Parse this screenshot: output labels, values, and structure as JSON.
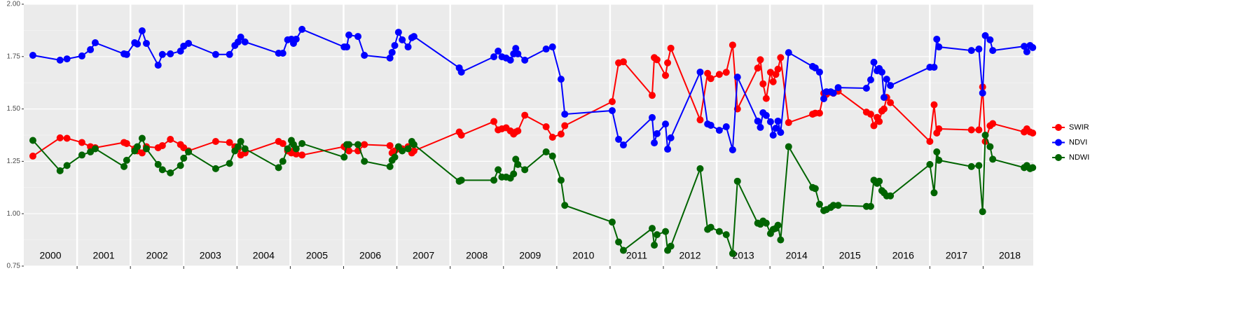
{
  "chart_data": {
    "type": "line",
    "x": [
      2000.17,
      2000.68,
      2000.81,
      2001.09,
      2001.25,
      2001.34,
      2001.88,
      2001.93,
      2002.08,
      2002.13,
      2002.22,
      2002.3,
      2002.52,
      2002.6,
      2002.75,
      2002.94,
      2003.0,
      2003.09,
      2003.6,
      2003.86,
      2003.96,
      2004.02,
      2004.07,
      2004.15,
      2004.78,
      2004.86,
      2004.95,
      2005.02,
      2005.06,
      2005.11,
      2005.22,
      2006.01,
      2006.06,
      2006.1,
      2006.27,
      2006.39,
      2006.87,
      2006.91,
      2006.96,
      2007.03,
      2007.1,
      2007.21,
      2007.28,
      2007.32,
      2008.17,
      2008.21,
      2008.82,
      2008.9,
      2008.97,
      2009.05,
      2009.13,
      2009.19,
      2009.23,
      2009.27,
      2009.4,
      2009.8,
      2009.92,
      2010.08,
      2010.15,
      2011.04,
      2011.16,
      2011.25,
      2011.79,
      2011.83,
      2011.88,
      2012.04,
      2012.08,
      2012.14,
      2012.69,
      2012.83,
      2012.89,
      2013.05,
      2013.18,
      2013.3,
      2013.39,
      2013.77,
      2013.82,
      2013.87,
      2013.93,
      2014.01,
      2014.06,
      2014.11,
      2014.15,
      2014.2,
      2014.35,
      2014.8,
      2014.85,
      2014.93,
      2015.01,
      2015.06,
      2015.14,
      2015.19,
      2015.28,
      2015.81,
      2015.89,
      2015.95,
      2016.01,
      2016.05,
      2016.1,
      2016.14,
      2016.19,
      2016.26,
      2017.0,
      2017.08,
      2017.13,
      2017.17,
      2017.78,
      2017.92,
      2017.99,
      2018.04,
      2018.13,
      2018.18,
      2018.77,
      2018.82,
      2018.88,
      2018.93
    ],
    "series": [
      {
        "name": "SWIR",
        "color": "#ff0000",
        "values": [
          1.275,
          1.362,
          1.36,
          1.34,
          1.32,
          1.315,
          1.34,
          1.335,
          1.31,
          1.3,
          1.29,
          1.32,
          1.315,
          1.325,
          1.355,
          1.33,
          1.315,
          1.3,
          1.345,
          1.34,
          1.32,
          1.31,
          1.28,
          1.29,
          1.345,
          1.335,
          1.3,
          1.29,
          1.3,
          1.285,
          1.28,
          1.32,
          1.31,
          1.3,
          1.3,
          1.33,
          1.325,
          1.29,
          1.3,
          1.31,
          1.31,
          1.32,
          1.29,
          1.3,
          1.39,
          1.375,
          1.44,
          1.4,
          1.405,
          1.41,
          1.395,
          1.38,
          1.39,
          1.395,
          1.47,
          1.415,
          1.365,
          1.38,
          1.42,
          1.535,
          1.72,
          1.725,
          1.565,
          1.745,
          1.735,
          1.66,
          1.72,
          1.79,
          1.448,
          1.67,
          1.645,
          1.665,
          1.675,
          1.805,
          1.5,
          1.695,
          1.735,
          1.62,
          1.55,
          1.675,
          1.63,
          1.665,
          1.69,
          1.745,
          1.435,
          1.475,
          1.48,
          1.48,
          1.575,
          1.57,
          1.58,
          1.575,
          1.585,
          1.485,
          1.475,
          1.42,
          1.46,
          1.44,
          1.49,
          1.5,
          1.555,
          1.53,
          1.345,
          1.52,
          1.385,
          1.405,
          1.4,
          1.4,
          1.605,
          1.345,
          1.42,
          1.43,
          1.39,
          1.405,
          1.39,
          1.385
        ]
      },
      {
        "name": "NDVI",
        "color": "#0000ff",
        "values": [
          1.756,
          1.733,
          1.739,
          1.753,
          1.783,
          1.816,
          1.763,
          1.76,
          1.816,
          1.81,
          1.873,
          1.813,
          1.709,
          1.76,
          1.763,
          1.776,
          1.8,
          1.813,
          1.76,
          1.76,
          1.803,
          1.82,
          1.843,
          1.82,
          1.766,
          1.766,
          1.83,
          1.833,
          1.813,
          1.833,
          1.88,
          1.796,
          1.796,
          1.853,
          1.846,
          1.756,
          1.743,
          1.77,
          1.803,
          1.866,
          1.83,
          1.796,
          1.84,
          1.846,
          1.696,
          1.676,
          1.749,
          1.776,
          1.749,
          1.743,
          1.733,
          1.763,
          1.789,
          1.763,
          1.733,
          1.786,
          1.796,
          1.642,
          1.475,
          1.492,
          1.355,
          1.328,
          1.459,
          1.338,
          1.382,
          1.428,
          1.308,
          1.362,
          1.676,
          1.428,
          1.422,
          1.398,
          1.415,
          1.305,
          1.652,
          1.442,
          1.412,
          1.482,
          1.469,
          1.439,
          1.375,
          1.408,
          1.442,
          1.388,
          1.769,
          1.703,
          1.696,
          1.676,
          1.549,
          1.582,
          1.582,
          1.576,
          1.602,
          1.599,
          1.639,
          1.723,
          1.682,
          1.693,
          1.676,
          1.555,
          1.642,
          1.612,
          1.699,
          1.699,
          1.833,
          1.796,
          1.779,
          1.786,
          1.576,
          1.85,
          1.83,
          1.779,
          1.799,
          1.773,
          1.803,
          1.793
        ]
      },
      {
        "name": "NDWI",
        "color": "#006400",
        "values": [
          1.35,
          1.205,
          1.23,
          1.28,
          1.295,
          1.31,
          1.225,
          1.255,
          1.3,
          1.32,
          1.36,
          1.31,
          1.235,
          1.21,
          1.195,
          1.23,
          1.265,
          1.295,
          1.215,
          1.24,
          1.3,
          1.32,
          1.345,
          1.31,
          1.22,
          1.25,
          1.31,
          1.35,
          1.33,
          1.31,
          1.335,
          1.27,
          1.33,
          1.33,
          1.33,
          1.25,
          1.225,
          1.255,
          1.27,
          1.32,
          1.3,
          1.31,
          1.345,
          1.33,
          1.155,
          1.16,
          1.16,
          1.21,
          1.175,
          1.175,
          1.17,
          1.19,
          1.26,
          1.235,
          1.21,
          1.295,
          1.275,
          1.16,
          1.04,
          0.96,
          0.865,
          0.825,
          0.93,
          0.85,
          0.9,
          0.915,
          0.825,
          0.845,
          1.215,
          0.925,
          0.935,
          0.915,
          0.9,
          0.81,
          1.155,
          0.955,
          0.95,
          0.965,
          0.955,
          0.905,
          0.925,
          0.93,
          0.945,
          0.875,
          1.32,
          1.125,
          1.12,
          1.045,
          1.015,
          1.02,
          1.03,
          1.04,
          1.04,
          1.035,
          1.035,
          1.16,
          1.145,
          1.155,
          1.11,
          1.1,
          1.085,
          1.085,
          1.235,
          1.1,
          1.295,
          1.255,
          1.225,
          1.23,
          1.01,
          1.375,
          1.32,
          1.26,
          1.22,
          1.23,
          1.215,
          1.22
        ]
      }
    ],
    "xlim": [
      2000,
      2018.94
    ],
    "xticks": [
      {
        "value": 2000.5,
        "label": "2000"
      },
      {
        "value": 2001.5,
        "label": "2001"
      },
      {
        "value": 2002.5,
        "label": "2002"
      },
      {
        "value": 2003.5,
        "label": "2003"
      },
      {
        "value": 2004.5,
        "label": "2004"
      },
      {
        "value": 2005.5,
        "label": "2005"
      },
      {
        "value": 2006.5,
        "label": "2006"
      },
      {
        "value": 2007.5,
        "label": "2007"
      },
      {
        "value": 2008.5,
        "label": "2008"
      },
      {
        "value": 2009.5,
        "label": "2009"
      },
      {
        "value": 2010.5,
        "label": "2010"
      },
      {
        "value": 2011.5,
        "label": "2011"
      },
      {
        "value": 2012.5,
        "label": "2012"
      },
      {
        "value": 2013.5,
        "label": "2013"
      },
      {
        "value": 2014.5,
        "label": "2014"
      },
      {
        "value": 2015.5,
        "label": "2015"
      },
      {
        "value": 2016.5,
        "label": "2016"
      },
      {
        "value": 2017.5,
        "label": "2017"
      },
      {
        "value": 2018.5,
        "label": "2018"
      }
    ],
    "xgrid": [
      2001,
      2002,
      2003,
      2004,
      2005,
      2006,
      2007,
      2008,
      2009,
      2010,
      2011,
      2012,
      2013,
      2014,
      2015,
      2016,
      2017,
      2018
    ],
    "ylim": [
      0.75,
      2.0
    ],
    "yticks": [
      {
        "value": 0.75,
        "label": "0.75"
      },
      {
        "value": 1.0,
        "label": "1.00"
      },
      {
        "value": 1.25,
        "label": "1.25"
      },
      {
        "value": 1.5,
        "label": "1.50"
      },
      {
        "value": 1.75,
        "label": "1.75"
      },
      {
        "value": 2.0,
        "label": "2.00"
      }
    ],
    "grid": true,
    "legend": "right"
  }
}
